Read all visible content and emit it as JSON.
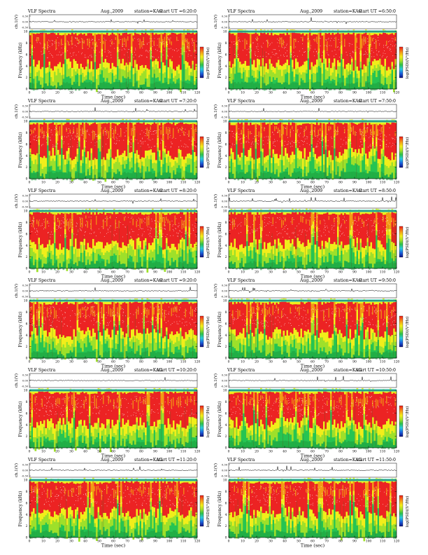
{
  "chart_data": [
    {
      "type": "heatmap",
      "title": "VLF Spectra",
      "month": "Aug.,2009",
      "station": "station=KAG",
      "start": "start  UT =6:20:0",
      "ch_label": "ch.1(V)",
      "ylabel": "Frequency (kHz)",
      "xlabel": "Time (sec)",
      "cbar_label": "log(PSD)(V²/Hz)",
      "ch_ticks": [
        "0.30",
        "0.00",
        "-0.30"
      ],
      "y_ticks": [
        "0",
        "2",
        "4",
        "6",
        "8",
        "10"
      ],
      "x_ticks": [
        "0",
        "10",
        "20",
        "30",
        "40",
        "50",
        "60",
        "70",
        "80",
        "90",
        "100",
        "110",
        "120"
      ],
      "xlim": [
        0,
        120
      ],
      "ylim": [
        0,
        10
      ],
      "chlim": [
        -0.3,
        0.3
      ]
    },
    {
      "type": "heatmap",
      "title": "VLF Spectra",
      "month": "Aug.,2009",
      "station": "station=KAG",
      "start": "start  UT =6:50:0",
      "ch_label": "ch.1(V)",
      "ylabel": "Frequency (kHz)",
      "xlabel": "Time (sec)",
      "cbar_label": "log(PSD)(V²/Hz)",
      "ch_ticks": [
        "0.30",
        "0.00",
        "-0.30"
      ],
      "y_ticks": [
        "0",
        "2",
        "4",
        "6",
        "8",
        "10"
      ],
      "x_ticks": [
        "0",
        "10",
        "20",
        "30",
        "40",
        "50",
        "60",
        "70",
        "80",
        "90",
        "100",
        "110",
        "120"
      ],
      "xlim": [
        0,
        120
      ],
      "ylim": [
        0,
        10
      ],
      "chlim": [
        -0.3,
        0.3
      ]
    },
    {
      "type": "heatmap",
      "title": "VLF Spectra",
      "month": "Aug.,2009",
      "station": "station=KAG",
      "start": "start  UT =7:20:0",
      "ch_label": "ch.1(V)",
      "ylabel": "Frequency (kHz)",
      "xlabel": "Time (sec)",
      "cbar_label": "log(PSD)(V²/Hz)",
      "ch_ticks": [
        "0.30",
        "0.00",
        "-0.30"
      ],
      "y_ticks": [
        "0",
        "2",
        "4",
        "6",
        "8",
        "10"
      ],
      "x_ticks": [
        "0",
        "10",
        "20",
        "30",
        "40",
        "50",
        "60",
        "70",
        "80",
        "90",
        "100",
        "110",
        "120"
      ],
      "xlim": [
        0,
        120
      ],
      "ylim": [
        0,
        10
      ],
      "chlim": [
        -0.3,
        0.3
      ]
    },
    {
      "type": "heatmap",
      "title": "VLF Spectra",
      "month": "Aug.,2009",
      "station": "station=KAG",
      "start": "start  UT =7:50:0",
      "ch_label": "ch.1(V)",
      "ylabel": "Frequency (kHz)",
      "xlabel": "Time (sec)",
      "cbar_label": "log(PSD)(V²/Hz)",
      "ch_ticks": [
        "0.30",
        "0.00",
        "-0.30"
      ],
      "y_ticks": [
        "0",
        "2",
        "4",
        "6",
        "8",
        "10"
      ],
      "x_ticks": [
        "0",
        "10",
        "20",
        "30",
        "40",
        "50",
        "60",
        "70",
        "80",
        "90",
        "100",
        "110",
        "120"
      ],
      "xlim": [
        0,
        120
      ],
      "ylim": [
        0,
        10
      ],
      "chlim": [
        -0.3,
        0.3
      ]
    },
    {
      "type": "heatmap",
      "title": "VLF Spectra",
      "month": "Aug.,2009",
      "station": "station=KAG",
      "start": "start  UT =8:20:0",
      "ch_label": "ch.1(V)",
      "ylabel": "Frequency (kHz)",
      "xlabel": "Time (sec)",
      "cbar_label": "log(PSD)(V²/Hz)",
      "ch_ticks": [
        "0.30",
        "0.00",
        "-0.30"
      ],
      "y_ticks": [
        "0",
        "2",
        "4",
        "6",
        "8",
        "10"
      ],
      "x_ticks": [
        "0",
        "10",
        "20",
        "30",
        "40",
        "50",
        "60",
        "70",
        "80",
        "90",
        "100",
        "110",
        "120"
      ],
      "xlim": [
        0,
        120
      ],
      "ylim": [
        0,
        10
      ],
      "chlim": [
        -0.3,
        0.3
      ]
    },
    {
      "type": "heatmap",
      "title": "VLF Spectra",
      "month": "Aug.,2009",
      "station": "station=KAG",
      "start": "start  UT =8:50:0",
      "ch_label": "ch.1(V)",
      "ylabel": "Frequency (kHz)",
      "xlabel": "Time (sec)",
      "cbar_label": "log(PSD)(V²/Hz)",
      "ch_ticks": [
        "0.30",
        "0.00",
        "-0.30"
      ],
      "y_ticks": [
        "0",
        "2",
        "4",
        "6",
        "8",
        "10"
      ],
      "x_ticks": [
        "0",
        "10",
        "20",
        "30",
        "40",
        "50",
        "60",
        "70",
        "80",
        "90",
        "100",
        "110",
        "120"
      ],
      "xlim": [
        0,
        120
      ],
      "ylim": [
        0,
        10
      ],
      "chlim": [
        -0.3,
        0.3
      ]
    },
    {
      "type": "heatmap",
      "title": "VLF Spectra",
      "month": "Aug.,2009",
      "station": "station=KAG",
      "start": "start  UT =9:20:0",
      "ch_label": "ch.1(V)",
      "ylabel": "Frequency (kHz)",
      "xlabel": "Time (sec)",
      "cbar_label": "log(PSD)(V²/Hz)",
      "ch_ticks": [
        "0.30",
        "0.00",
        "-0.30"
      ],
      "y_ticks": [
        "0",
        "2",
        "4",
        "6",
        "8",
        "10"
      ],
      "x_ticks": [
        "0",
        "10",
        "20",
        "30",
        "40",
        "50",
        "60",
        "70",
        "80",
        "90",
        "100",
        "110",
        "120"
      ],
      "xlim": [
        0,
        120
      ],
      "ylim": [
        0,
        10
      ],
      "chlim": [
        -0.3,
        0.3
      ]
    },
    {
      "type": "heatmap",
      "title": "VLF Spectra",
      "month": "Aug.,2009",
      "station": "station=KAG",
      "start": "start  UT =9:50:0",
      "ch_label": "ch.1(V)",
      "ylabel": "Frequency (kHz)",
      "xlabel": "Time (sec)",
      "cbar_label": "log(PSD)(V²/Hz)",
      "ch_ticks": [
        "0.30",
        "0.00",
        "-0.30"
      ],
      "y_ticks": [
        "0",
        "2",
        "4",
        "6",
        "8",
        "10"
      ],
      "x_ticks": [
        "0",
        "10",
        "20",
        "30",
        "40",
        "50",
        "60",
        "70",
        "80",
        "90",
        "100",
        "110",
        "120"
      ],
      "xlim": [
        0,
        120
      ],
      "ylim": [
        0,
        10
      ],
      "chlim": [
        -0.3,
        0.3
      ]
    },
    {
      "type": "heatmap",
      "title": "VLF Spectra",
      "month": "Aug.,2009",
      "station": "station=KAG",
      "start": "start  UT =10:20:0",
      "ch_label": "ch.1(V)",
      "ylabel": "Frequency (kHz)",
      "xlabel": "Time (sec)",
      "cbar_label": "log(PSD)(V²/Hz)",
      "ch_ticks": [
        "0.30",
        "0.00",
        "-0.30"
      ],
      "y_ticks": [
        "0",
        "2",
        "4",
        "6",
        "8",
        "10"
      ],
      "x_ticks": [
        "0",
        "10",
        "20",
        "30",
        "40",
        "50",
        "60",
        "70",
        "80",
        "90",
        "100",
        "110",
        "120"
      ],
      "xlim": [
        0,
        120
      ],
      "ylim": [
        0,
        10
      ],
      "chlim": [
        -0.3,
        0.3
      ]
    },
    {
      "type": "heatmap",
      "title": "VLF Spectra",
      "month": "Aug.,2009",
      "station": "station=KAG",
      "start": "start  UT =10:50:0",
      "ch_label": "ch.1(V)",
      "ylabel": "Frequency (kHz)",
      "xlabel": "Time (sec)",
      "cbar_label": "log(PSD)(V²/Hz)",
      "ch_ticks": [
        "0.30",
        "0.00",
        "-0.30"
      ],
      "y_ticks": [
        "0",
        "2",
        "4",
        "6",
        "8",
        "10"
      ],
      "x_ticks": [
        "0",
        "10",
        "20",
        "30",
        "40",
        "50",
        "60",
        "70",
        "80",
        "90",
        "100",
        "110",
        "120"
      ],
      "xlim": [
        0,
        120
      ],
      "ylim": [
        0,
        10
      ],
      "chlim": [
        -0.3,
        0.3
      ]
    },
    {
      "type": "heatmap",
      "title": "VLF Spectra",
      "month": "Aug.,2009",
      "station": "station=KAG",
      "start": "start  UT =11:20:0",
      "ch_label": "ch.1(V)",
      "ylabel": "Frequency (kHz)",
      "xlabel": "Time (sec)",
      "cbar_label": "log(PSD)(V²/Hz)",
      "ch_ticks": [
        "0.30",
        "0.00",
        "-0.30"
      ],
      "y_ticks": [
        "0",
        "2",
        "4",
        "6",
        "8",
        "10"
      ],
      "x_ticks": [
        "0",
        "10",
        "20",
        "30",
        "40",
        "50",
        "60",
        "70",
        "80",
        "90",
        "100",
        "110",
        "120"
      ],
      "xlim": [
        0,
        120
      ],
      "ylim": [
        0,
        10
      ],
      "chlim": [
        -0.3,
        0.3
      ]
    },
    {
      "type": "heatmap",
      "title": "VLF Spectra",
      "month": "Aug.,2009",
      "station": "station=KAG",
      "start": "start  UT =11:50:0",
      "ch_label": "ch.1(V)",
      "ylabel": "Frequency (kHz)",
      "xlabel": "Time (sec)",
      "cbar_label": "log(PSD)(V²/Hz)",
      "ch_ticks": [
        "0.30",
        "0.00",
        "-0.30"
      ],
      "y_ticks": [
        "0",
        "2",
        "4",
        "6",
        "8",
        "10"
      ],
      "x_ticks": [
        "0",
        "10",
        "20",
        "30",
        "40",
        "50",
        "60",
        "70",
        "80",
        "90",
        "100",
        "110",
        "120"
      ],
      "xlim": [
        0,
        120
      ],
      "ylim": [
        0,
        10
      ],
      "chlim": [
        -0.3,
        0.3
      ]
    }
  ],
  "colors": {
    "noise_low": "#1e9e3c",
    "green": "#26c452",
    "yellow_green": "#9ee02a",
    "yellow": "#f1ee1a",
    "orange": "#f39a14",
    "red": "#ec2323",
    "cyan_band": "#3fdcc0",
    "white_speckle": "#ffffff",
    "colorbar": [
      "#ee1c1c",
      "#f6a01a",
      "#f4f01c",
      "#a8e22a",
      "#2ec24a",
      "#2acde0",
      "#1c62e0",
      "#121280"
    ]
  }
}
